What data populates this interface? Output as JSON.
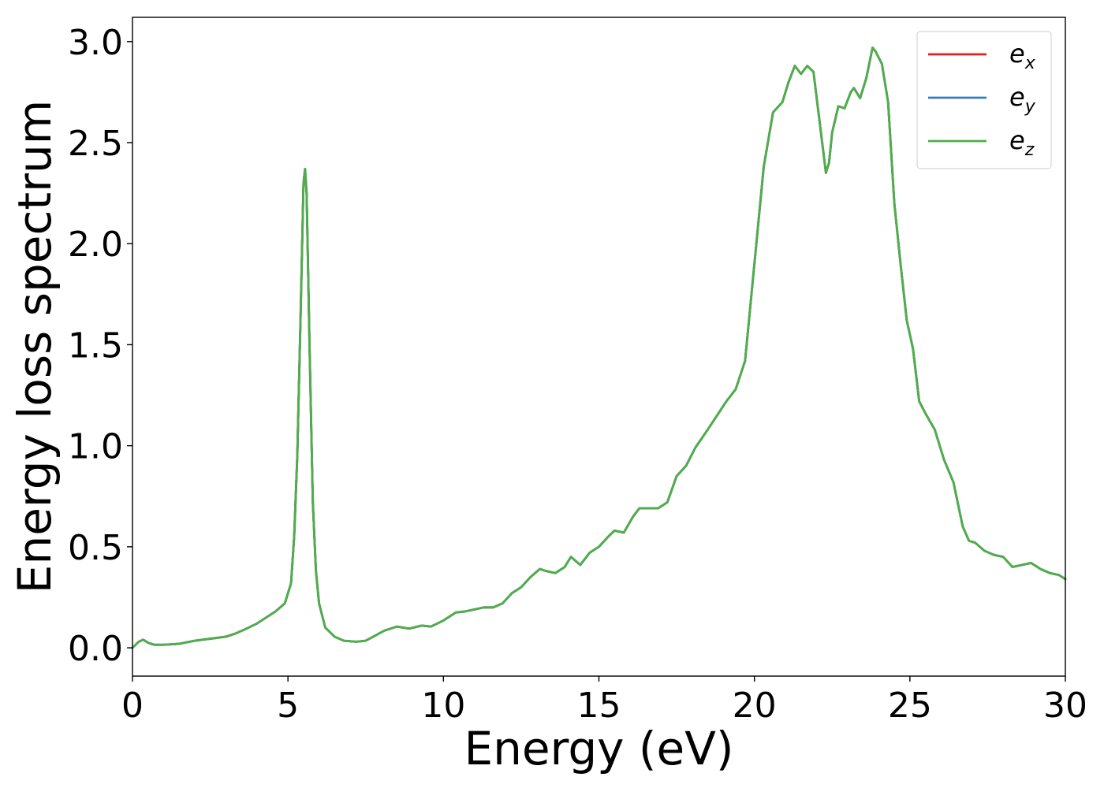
{
  "chart_data": {
    "type": "line",
    "xlabel": "Energy (eV)",
    "ylabel": "Energy loss spectrum",
    "xlim": [
      0,
      30
    ],
    "ylim": [
      -0.14,
      3.12
    ],
    "xticks": [
      "0",
      "5",
      "10",
      "15",
      "20",
      "25",
      "30"
    ],
    "yticks": [
      "0.0",
      "0.5",
      "1.0",
      "1.5",
      "2.0",
      "2.5",
      "3.0"
    ],
    "grid": false,
    "legend_position": "top-right",
    "series": [
      {
        "name": "e_x",
        "base": "e",
        "sub": "x",
        "color": "#e41a1c"
      },
      {
        "name": "e_y",
        "base": "e",
        "sub": "y",
        "color": "#377eb8"
      },
      {
        "name": "e_z",
        "base": "e",
        "sub": "z",
        "color": "#4daf4a"
      }
    ],
    "x": [
      0,
      0.2,
      0.35,
      0.5,
      0.7,
      1,
      1.5,
      2,
      2.5,
      3,
      3.3,
      3.6,
      4,
      4.3,
      4.6,
      4.9,
      5.1,
      5.2,
      5.3,
      5.4,
      5.5,
      5.55,
      5.6,
      5.7,
      5.8,
      5.9,
      6.0,
      6.2,
      6.5,
      6.8,
      7.2,
      7.5,
      7.8,
      8.1,
      8.5,
      8.9,
      9.3,
      9.6,
      10,
      10.4,
      10.7,
      11.0,
      11.3,
      11.6,
      11.9,
      12.2,
      12.5,
      12.8,
      13.1,
      13.3,
      13.6,
      13.9,
      14.1,
      14.4,
      14.7,
      15.0,
      15.3,
      15.5,
      15.8,
      16.1,
      16.3,
      16.6,
      16.9,
      17.2,
      17.5,
      17.8,
      18.1,
      18.5,
      18.8,
      19.1,
      19.4,
      19.7,
      20.0,
      20.3,
      20.6,
      20.9,
      21.1,
      21.3,
      21.5,
      21.7,
      21.9,
      22.1,
      22.3,
      22.4,
      22.5,
      22.7,
      22.9,
      23.1,
      23.2,
      23.4,
      23.6,
      23.8,
      23.9,
      24.1,
      24.3,
      24.5,
      24.7,
      24.9,
      25.1,
      25.3,
      25.5,
      25.8,
      26.1,
      26.4,
      26.7,
      26.9,
      27.1,
      27.4,
      27.7,
      28.0,
      28.3,
      28.6,
      28.9,
      29.2,
      29.5,
      29.8,
      30
    ],
    "y": [
      0.0,
      0.03,
      0.04,
      0.025,
      0.015,
      0.015,
      0.02,
      0.035,
      0.045,
      0.055,
      0.07,
      0.09,
      0.12,
      0.15,
      0.18,
      0.22,
      0.32,
      0.55,
      0.95,
      1.6,
      2.3,
      2.37,
      2.25,
      1.45,
      0.72,
      0.38,
      0.22,
      0.1,
      0.055,
      0.035,
      0.03,
      0.035,
      0.06,
      0.085,
      0.105,
      0.095,
      0.11,
      0.105,
      0.135,
      0.175,
      0.18,
      0.19,
      0.2,
      0.2,
      0.22,
      0.27,
      0.3,
      0.35,
      0.39,
      0.38,
      0.37,
      0.4,
      0.45,
      0.41,
      0.47,
      0.5,
      0.55,
      0.58,
      0.57,
      0.65,
      0.69,
      0.69,
      0.69,
      0.72,
      0.85,
      0.9,
      0.99,
      1.08,
      1.15,
      1.22,
      1.28,
      1.42,
      1.9,
      2.38,
      2.65,
      2.7,
      2.8,
      2.88,
      2.84,
      2.88,
      2.85,
      2.6,
      2.35,
      2.4,
      2.55,
      2.68,
      2.67,
      2.75,
      2.77,
      2.72,
      2.82,
      2.97,
      2.95,
      2.89,
      2.7,
      2.2,
      1.9,
      1.62,
      1.48,
      1.22,
      1.16,
      1.08,
      0.93,
      0.82,
      0.6,
      0.53,
      0.52,
      0.48,
      0.46,
      0.45,
      0.4,
      0.41,
      0.42,
      0.39,
      0.37,
      0.36,
      0.34
    ]
  }
}
